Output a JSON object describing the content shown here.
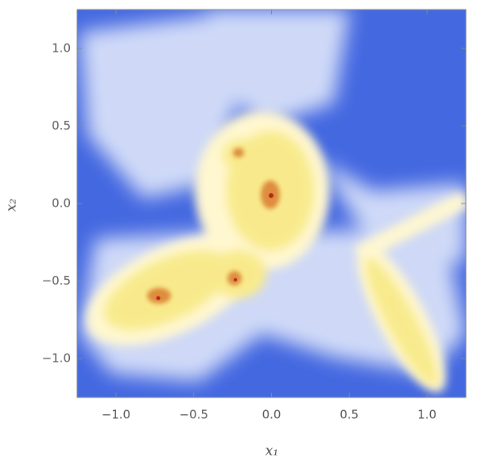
{
  "chart_data": {
    "type": "density",
    "xlabel": "x₁",
    "ylabel": "x₂",
    "xlim": [
      -1.25,
      1.25
    ],
    "ylim": [
      -1.25,
      1.25
    ],
    "xticks": [
      {
        "value": -1,
        "label": "−1.0"
      },
      {
        "value": -0.5,
        "label": "−0.5"
      },
      {
        "value": 0,
        "label": "0.0"
      },
      0.5,
      {
        "value": 1,
        "label": "1.0"
      }
    ],
    "yticks": [
      {
        "value": -1,
        "label": "−1.0"
      },
      {
        "value": -0.5,
        "label": "−0.5"
      },
      {
        "value": 0,
        "label": "0.0"
      },
      0.5,
      {
        "value": 1,
        "label": "1.0"
      }
    ]
  }
}
